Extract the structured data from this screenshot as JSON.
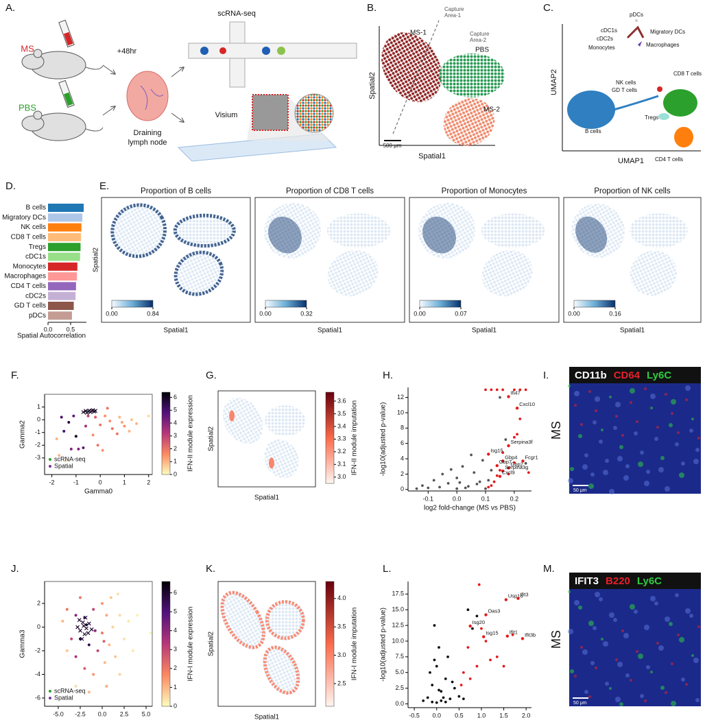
{
  "panel_a": {
    "letter": "A.",
    "groups": [
      "MS",
      "PBS"
    ],
    "time": "+48hr",
    "node": [
      "Draining",
      "lymph node"
    ],
    "methods": [
      "scRNA-seq",
      "Visium"
    ]
  },
  "panel_b": {
    "letter": "B.",
    "sections": [
      "MS-1",
      "PBS",
      "MS-2"
    ],
    "capture_areas": [
      [
        "Capture",
        "Area-1"
      ],
      [
        "Capture",
        "Area-2"
      ]
    ],
    "xlabel": "Spatial1",
    "ylabel": "Spatial2",
    "scale_bar": "500 μm"
  },
  "panel_c": {
    "letter": "C.",
    "clusters": [
      "pDCs",
      "cDC1s",
      "cDC2s",
      "Monocytes",
      "Migratory DCs",
      "Macrophages",
      "NK cells",
      "GD T cells",
      "CD8 T cells",
      "Tregs",
      "B cells",
      "CD4 T cells"
    ],
    "xlabel": "UMAP1",
    "ylabel": "UMAP2"
  },
  "panel_d": {
    "letter": "D.",
    "type": "bar",
    "categories": [
      "B cells",
      "Migratory DCs",
      "NK cells",
      "CD8 T cells",
      "Tregs",
      "cDC1s",
      "Monocytes",
      "Macrophages",
      "CD4 T cells",
      "cDC2s",
      "GD T cells",
      "pDCs"
    ],
    "values": [
      0.79,
      0.76,
      0.74,
      0.73,
      0.72,
      0.71,
      0.65,
      0.64,
      0.62,
      0.61,
      0.57,
      0.53
    ],
    "colors": [
      "#1f77b4",
      "#aec7e8",
      "#ff7f0e",
      "#ffbb78",
      "#2ca02c",
      "#98df8a",
      "#d62728",
      "#ff9896",
      "#9467bd",
      "#c5b0d5",
      "#8c564b",
      "#c49c94"
    ],
    "xlim": [
      0,
      0.85
    ],
    "xticks": [
      {
        "value": 0,
        "label": "0.0"
      },
      0.5
    ],
    "xlabel": "Spatial Autocorrelation"
  },
  "panel_e": {
    "letter": "E.",
    "type": "spatial_maps",
    "xlabel": "Spatial1",
    "ylabel": "Spatial2",
    "colormap": [
      "#f7fbff",
      "#6baed6",
      "#08306b"
    ],
    "maps": [
      {
        "title": "Proportion of B cells",
        "clim": [
          0,
          0.84
        ],
        "cticks": [
          {
            "value": 0,
            "label": "0.00"
          },
          0.84
        ]
      },
      {
        "title": "Proportion of CD8 T cells",
        "clim": [
          0,
          0.32
        ],
        "cticks": [
          {
            "value": 0,
            "label": "0.00"
          },
          0.32
        ]
      },
      {
        "title": "Proportion of Monocytes",
        "clim": [
          0,
          0.07
        ],
        "cticks": [
          {
            "value": 0,
            "label": "0.00"
          },
          0.07
        ]
      },
      {
        "title": "Proportion of NK cells",
        "clim": [
          0,
          0.16
        ],
        "cticks": [
          {
            "value": 0,
            "label": "0.00"
          },
          0.16
        ]
      }
    ]
  },
  "panel_f": {
    "letter": "F.",
    "type": "scatter",
    "xlabel": "Gamma0",
    "ylabel": "Gamma2",
    "xlim": [
      -2.3,
      2.15
    ],
    "ylim": [
      -4.3,
      2.0
    ],
    "xticks": [
      -2,
      -1,
      0,
      1,
      2
    ],
    "yticks": [
      -3,
      -2,
      -1,
      0,
      1
    ],
    "colorbar_label": "IFN-II module expression",
    "clim": [
      0,
      6.4
    ],
    "cticks": [
      0,
      1,
      2,
      3,
      4,
      5,
      6
    ],
    "colormap": [
      "#fcfdbf",
      "#fc8961",
      "#b73779",
      "#51127c",
      "#000004"
    ],
    "series": [
      {
        "name": "scRNA-seq",
        "color": "#2ca02c",
        "marker": "x",
        "x": [
          -0.6,
          -0.5,
          -0.45,
          -0.4,
          -0.35,
          -0.3,
          -0.25,
          -0.7,
          -0.55,
          -0.2
        ],
        "y": [
          0.7,
          0.65,
          0.72,
          0.6,
          0.7,
          0.75,
          0.65,
          0.6,
          0.55,
          0.7
        ],
        "c": [
          6,
          6,
          6,
          6,
          6,
          6,
          6,
          6,
          6,
          6
        ]
      },
      {
        "name": "Spatial",
        "color": "#7b2f9e",
        "marker": "dot",
        "x": [
          -1.8,
          -1.5,
          -1.3,
          -1.1,
          -1.0,
          -0.9,
          -0.7,
          -1.6,
          -1.2,
          -0.5,
          -0.2,
          0.0,
          0.2,
          0.4,
          0.5,
          0.8,
          1.0,
          1.2,
          -0.3,
          -0.1,
          0.1,
          0.7,
          1.5,
          2.0,
          -1.7,
          0.3,
          -0.6,
          1.3,
          -1.4,
          0.9
        ],
        "y": [
          -1.5,
          -0.9,
          -0.2,
          0.3,
          -1.3,
          -2.3,
          -2.2,
          0.2,
          -2.3,
          0.3,
          0.2,
          -0.4,
          0.3,
          -0.1,
          -0.7,
          0.2,
          -0.5,
          -0.9,
          -1.2,
          -2.0,
          -2.4,
          -1.1,
          -0.3,
          0.3,
          -2.8,
          0.9,
          -0.5,
          0.0,
          -3.2,
          -0.2
        ],
        "c": [
          1,
          5,
          5.5,
          4.5,
          6,
          4,
          4.5,
          5,
          4,
          3,
          2.5,
          2,
          1.5,
          1.5,
          2,
          1,
          1.5,
          1,
          1.5,
          2,
          1.5,
          2,
          1,
          0.5,
          1,
          2,
          3.5,
          0.8,
          0.5,
          1.2
        ]
      }
    ]
  },
  "panel_g": {
    "letter": "G.",
    "type": "spatial_map",
    "xlabel": "Spatial1",
    "ylabel": "Spatial2",
    "colorbar_label": "IFN-II module imputation",
    "clim": [
      2.95,
      3.67
    ],
    "cticks": [
      {
        "value": 3,
        "label": "3.0"
      },
      3.1,
      3.2,
      3.3,
      3.4,
      3.5,
      3.6
    ],
    "colormap": [
      "#fff5f0",
      "#fb6a4a",
      "#67000d"
    ]
  },
  "panel_h": {
    "letter": "H.",
    "type": "volcano",
    "xlabel": "log2 fold-change (MS vs PBS)",
    "ylabel": "-log10(adjusted p-value)",
    "xlim": [
      -0.17,
      0.26
    ],
    "ylim": [
      -0.2,
      13.3
    ],
    "xticks": [
      -0.1,
      {
        "value": 0,
        "label": "0.0"
      },
      0.1,
      0.2
    ],
    "yticks": [
      0,
      2,
      4,
      6,
      8,
      10,
      12
    ],
    "series": [
      {
        "color": "#555555",
        "x": [
          -0.12,
          -0.08,
          -0.05,
          -0.03,
          0.0,
          0.02,
          0.04,
          0.06,
          0.08,
          -0.1,
          0.0,
          0.03,
          -0.06,
          0.09,
          0.05,
          0.11,
          -0.02,
          0.07,
          0.12,
          0.01,
          0.24,
          0.15,
          0.17,
          -0.14,
          0.1
        ],
        "y": [
          0.5,
          1.2,
          2.0,
          0.8,
          1.5,
          3.0,
          0.4,
          2.2,
          1.0,
          0.2,
          0.1,
          0.2,
          0.3,
          3.8,
          4.5,
          1.2,
          2.6,
          0.7,
          2.5,
          0.9,
          3.4,
          12.0,
          6.5,
          0.1,
          0.1
        ]
      },
      {
        "color": "#e41a1c",
        "x": [
          0.1,
          0.12,
          0.14,
          0.16,
          0.2,
          0.22,
          0.24,
          0.13,
          0.14,
          0.15,
          0.12,
          0.18,
          0.2,
          0.11,
          0.16,
          0.21,
          0.2,
          0.22,
          0.25
        ],
        "y": [
          13,
          13,
          13,
          13,
          13,
          13,
          13,
          1.0,
          1.8,
          2.5,
          0.5,
          2.0,
          3.5,
          0.3,
          4.8,
          7.2,
          6.8,
          9.2,
          2.2
        ]
      }
    ],
    "genes": [
      {
        "name": "Ifi47",
        "x": 0.18,
        "y": 12.1
      },
      {
        "name": "Cxcl10",
        "x": 0.21,
        "y": 10.6
      },
      {
        "name": "Serpina3f",
        "x": 0.18,
        "y": 5.7
      },
      {
        "name": "Isg15",
        "x": 0.11,
        "y": 4.6
      },
      {
        "name": "Gbp4",
        "x": 0.16,
        "y": 3.7
      },
      {
        "name": "Gbp7",
        "x": 0.14,
        "y": 3.1
      },
      {
        "name": "Fcgr1",
        "x": 0.23,
        "y": 3.7
      },
      {
        "name": "Gbp2",
        "x": 0.18,
        "y": 2.8
      },
      {
        "name": "Serpina3g",
        "x": 0.16,
        "y": 2.4
      },
      {
        "name": "Cxcl9",
        "x": 0.15,
        "y": 1.7
      }
    ]
  },
  "panel_i": {
    "letter": "I.",
    "type": "image",
    "markers": [
      {
        "text": "CD11b",
        "color": "#ffffff"
      },
      {
        "text": "CD64",
        "color": "#e8202a"
      },
      {
        "text": "Ly6C",
        "color": "#2ecc40"
      }
    ],
    "condition": "MS",
    "scale_bar": "50 μm"
  },
  "panel_j": {
    "letter": "J.",
    "type": "scatter",
    "xlabel": "Gamma0",
    "ylabel": "Gamma3",
    "xlim": [
      -6.56,
      5.7
    ],
    "ylim": [
      -6.7,
      3.86
    ],
    "xticks": [
      {
        "value": -5,
        "label": "-5.0"
      },
      -2.5,
      {
        "value": 0,
        "label": "0.0"
      },
      2.5,
      {
        "value": 5,
        "label": "5.0"
      }
    ],
    "yticks": [
      -6,
      -4,
      -2,
      0,
      2
    ],
    "colorbar_label": "IFN-I module expression",
    "clim": [
      0,
      6.6
    ],
    "cticks": [
      0,
      1,
      2,
      3,
      4,
      5,
      6
    ],
    "colormap": [
      "#fcfdbf",
      "#fc8961",
      "#b73779",
      "#51127c",
      "#000004"
    ],
    "series": [
      {
        "name": "scRNA-seq",
        "color": "#2ca02c",
        "marker": "x",
        "x": [
          -2.8,
          -2.5,
          -2.2,
          -2,
          -1.8,
          -1.5,
          -2.6,
          -2.3,
          -1.9,
          -1.6,
          -2.1,
          -1.2
        ],
        "y": [
          0,
          -0.3,
          0.4,
          -0.6,
          -0.1,
          0.3,
          0.6,
          -1,
          0.8,
          -0.5,
          0.1,
          -0.2
        ],
        "c": [
          6,
          6,
          6,
          6,
          6,
          6,
          6,
          6,
          6,
          6,
          6,
          6
        ]
      },
      {
        "name": "Spatial",
        "color": "#7b2f9e",
        "marker": "dot",
        "x": [
          -4.5,
          -4,
          -3.5,
          -3,
          -3,
          -2.5,
          -2,
          -2,
          -1.5,
          -1,
          -1,
          -0.5,
          0,
          0,
          0.3,
          0.5,
          0.8,
          1,
          1.2,
          1.5,
          2,
          2.5,
          3,
          3.5,
          4,
          5.5,
          -1.5,
          0.5,
          -3,
          2,
          -2.5,
          -1.8,
          1.8,
          -0.8,
          0.2,
          -4
        ],
        "y": [
          0.5,
          1.5,
          -1,
          1,
          -2.5,
          2.5,
          -3.5,
          0.8,
          -1.5,
          1.5,
          -4,
          -2,
          2,
          -0.5,
          -3,
          1,
          -1.5,
          2.5,
          0,
          -2.5,
          1,
          -1,
          0.5,
          -2,
          1,
          -0.5,
          -5.5,
          -5,
          -5,
          -4,
          -1,
          0.2,
          2.8,
          -0.3,
          -1.2,
          -2
        ],
        "c": [
          1,
          2,
          3,
          4,
          3.5,
          2,
          2.5,
          5,
          5.5,
          3,
          1.5,
          3,
          1.5,
          2,
          1,
          1.2,
          1,
          0.8,
          0.6,
          0.8,
          0.5,
          0.4,
          0.3,
          0.3,
          0.2,
          0.1,
          1,
          1.2,
          0.5,
          0.6,
          6,
          6.2,
          0.4,
          4,
          2.5,
          0.8
        ]
      }
    ]
  },
  "panel_k": {
    "letter": "K.",
    "type": "spatial_map",
    "xlabel": "Spatial1",
    "ylabel": "Spatial2",
    "colorbar_label": "IFN-I module imputation",
    "clim": [
      2.1,
      4.3
    ],
    "cticks": [
      2.5,
      {
        "value": 3,
        "label": "3.0"
      },
      3.5,
      {
        "value": 4,
        "label": "4.0"
      }
    ],
    "colormap": [
      "#fff5f0",
      "#fb6a4a",
      "#67000d"
    ]
  },
  "panel_l": {
    "letter": "L.",
    "type": "volcano",
    "xlabel": "log2 fold-change (MS vs PBS)",
    "ylabel": "-log10(adjusted p-value)",
    "xlim": [
      -0.64,
      2.12
    ],
    "ylim": [
      -0.6,
      19.5
    ],
    "xticks": [
      -0.5,
      {
        "value": 0,
        "label": "0.0"
      },
      0.5,
      {
        "value": 1,
        "label": "1.0"
      },
      1.5,
      {
        "value": 2,
        "label": "2.0"
      }
    ],
    "yticks": [
      {
        "value": 0,
        "label": "0.0"
      },
      2.5,
      {
        "value": 5,
        "label": "5.0"
      },
      7.5,
      {
        "value": 10,
        "label": "10.0"
      },
      12.5,
      {
        "value": 15,
        "label": "15.0"
      },
      17.5
    ],
    "series": [
      {
        "color": "#111111",
        "x": [
          -0.2,
          -0.1,
          0,
          0.05,
          -0.05,
          0.1,
          0.2,
          -0.3,
          0.15,
          0.3,
          0.0,
          -0.15,
          0.25,
          0.4,
          0.5,
          0.1,
          -0.1,
          0.05,
          0.6,
          0.35,
          -0.05,
          0.2,
          0.8,
          0.9,
          0.7
        ],
        "y": [
          1,
          3,
          6,
          9,
          12.5,
          2,
          4,
          0.5,
          1,
          0.8,
          0.2,
          5,
          7.5,
          2.5,
          1.2,
          0.5,
          0.3,
          2.2,
          0.8,
          3.5,
          7,
          0.3,
          12,
          14,
          15
        ]
      },
      {
        "color": "#e41a1c",
        "x": [
          0.6,
          0.75,
          0.9,
          1.2,
          1.35,
          0.7,
          1.0,
          1.1,
          1.5,
          0.95,
          0.55,
          1.7
        ],
        "y": [
          5,
          4,
          6,
          7,
          7.5,
          9,
          12,
          10,
          6,
          19,
          3,
          11
        ]
      }
    ],
    "genes": [
      {
        "name": "Usp18",
        "x": 1.55,
        "y": 16.6
      },
      {
        "name": "Ifit3",
        "x": 1.82,
        "y": 16.8
      },
      {
        "name": "Oas3",
        "x": 1.1,
        "y": 14.2
      },
      {
        "name": "Isg20",
        "x": 0.75,
        "y": 12.4
      },
      {
        "name": "Isg15",
        "x": 1.05,
        "y": 10.7
      },
      {
        "name": "Ifit1",
        "x": 1.58,
        "y": 10.8
      },
      {
        "name": "Ifit3b",
        "x": 1.92,
        "y": 10.4
      }
    ]
  },
  "panel_m": {
    "letter": "M.",
    "type": "image",
    "markers": [
      {
        "text": "IFIT3",
        "color": "#ffffff"
      },
      {
        "text": "B220",
        "color": "#e8202a"
      },
      {
        "text": "Ly6C",
        "color": "#2ecc40"
      }
    ],
    "condition": "MS",
    "scale_bar": "50 μm"
  }
}
